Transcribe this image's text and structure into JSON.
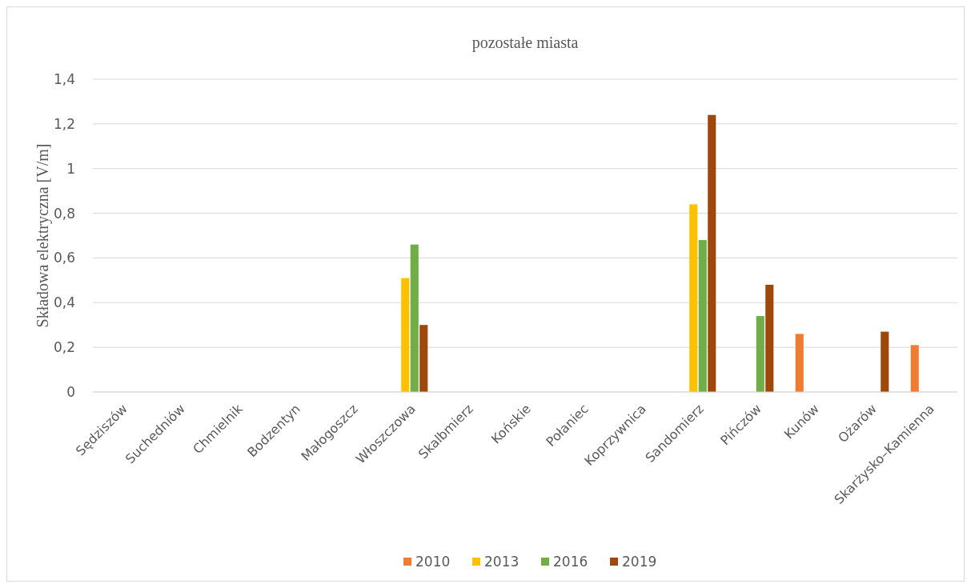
{
  "chart_data": {
    "type": "bar",
    "title": "pozostałe miasta",
    "ylabel": "Składowa elektryczna [V/m]",
    "categories": [
      "Sędziszów",
      "Suchedniów",
      "Chmielnik",
      "Bodzentyn",
      "Małogoszcz",
      "Włoszczowa",
      "Skalbmierz",
      "Końskie",
      "Połaniec",
      "Koprzywnica",
      "Sandomierz",
      "Pińczów",
      "Kunów",
      "Ożarów",
      "Skarżysko–Kamienna"
    ],
    "series": [
      {
        "name": "2010",
        "color": "#ed7d31",
        "values": [
          null,
          null,
          null,
          null,
          null,
          null,
          null,
          null,
          null,
          null,
          null,
          null,
          0.26,
          null,
          0.21
        ]
      },
      {
        "name": "2013",
        "color": "#ffc000",
        "values": [
          null,
          null,
          null,
          null,
          null,
          0.51,
          null,
          null,
          null,
          null,
          0.84,
          null,
          null,
          null,
          null
        ]
      },
      {
        "name": "2016",
        "color": "#70ad47",
        "values": [
          null,
          null,
          null,
          null,
          null,
          0.66,
          null,
          null,
          null,
          null,
          0.68,
          0.34,
          null,
          null,
          null
        ]
      },
      {
        "name": "2019",
        "color": "#9e480e",
        "values": [
          null,
          null,
          null,
          null,
          null,
          0.3,
          null,
          null,
          null,
          null,
          1.24,
          0.48,
          null,
          0.27,
          null
        ]
      }
    ],
    "ylim": [
      0,
      1.4
    ],
    "yticks": [
      0,
      {
        "value": 0.2,
        "label": "0,2"
      },
      {
        "value": 0.4,
        "label": "0,4"
      },
      {
        "value": 0.6,
        "label": "0,6"
      },
      {
        "value": 0.8,
        "label": "0,8"
      },
      1,
      {
        "value": 1.2,
        "label": "1,2"
      },
      {
        "value": 1.4,
        "label": "1,4"
      }
    ],
    "grid": "y",
    "legend": "bottom"
  }
}
